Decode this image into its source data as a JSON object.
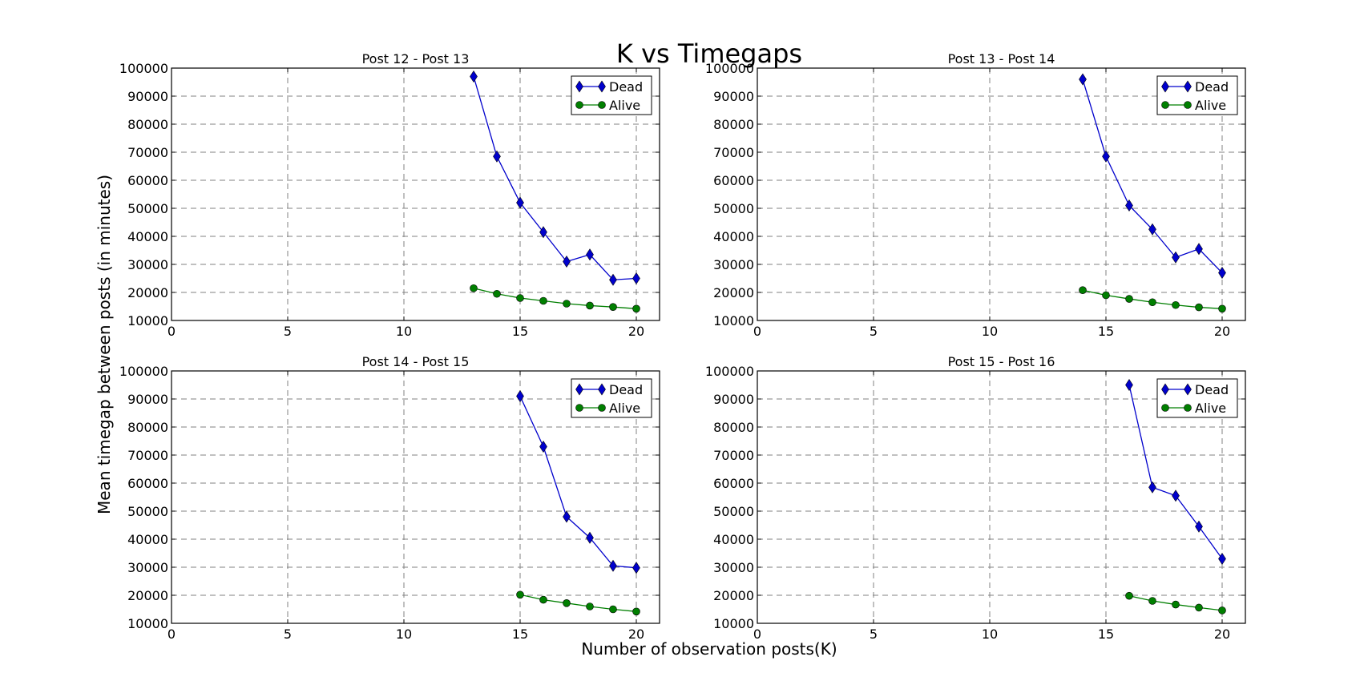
{
  "figure": {
    "title": "K vs Timegaps",
    "xlabel": "Number of observation posts(K)",
    "ylabel": "Mean timegap between posts (in minutes)"
  },
  "colors": {
    "dead": "#0000cc",
    "alive": "#007f00",
    "grid": "#808080",
    "axes": "#000000"
  },
  "chart_data": [
    {
      "type": "line",
      "title": "Post 12 - Post 13",
      "xlim": [
        0,
        21
      ],
      "ylim": [
        10000,
        100000
      ],
      "xticks": [
        "0",
        "5",
        "10",
        "15",
        "20"
      ],
      "yticks": [
        "10000",
        "20000",
        "30000",
        "40000",
        "50000",
        "60000",
        "70000",
        "80000",
        "90000",
        "100000"
      ],
      "grid": true,
      "legend": "top-right",
      "series": [
        {
          "name": "Dead",
          "marker": "diamond",
          "x": [
            13,
            14,
            15,
            16,
            17,
            18,
            19,
            20
          ],
          "y": [
            97000,
            68500,
            52000,
            41500,
            31000,
            33500,
            24500,
            25000
          ]
        },
        {
          "name": "Alive",
          "marker": "circle",
          "x": [
            13,
            14,
            15,
            16,
            17,
            18,
            19,
            20
          ],
          "y": [
            21500,
            19500,
            18000,
            17000,
            16000,
            15300,
            14800,
            14200
          ]
        }
      ]
    },
    {
      "type": "line",
      "title": "Post 13 - Post 14",
      "xlim": [
        0,
        21
      ],
      "ylim": [
        10000,
        100000
      ],
      "xticks": [
        "0",
        "5",
        "10",
        "15",
        "20"
      ],
      "yticks": [
        "10000",
        "20000",
        "30000",
        "40000",
        "50000",
        "60000",
        "70000",
        "80000",
        "90000",
        "100000"
      ],
      "grid": true,
      "legend": "top-right",
      "series": [
        {
          "name": "Dead",
          "marker": "diamond",
          "x": [
            14,
            15,
            16,
            17,
            18,
            19,
            20
          ],
          "y": [
            96000,
            68500,
            51000,
            42500,
            32500,
            35500,
            27000
          ]
        },
        {
          "name": "Alive",
          "marker": "circle",
          "x": [
            14,
            15,
            16,
            17,
            18,
            19,
            20
          ],
          "y": [
            20800,
            19000,
            17700,
            16500,
            15500,
            14700,
            14200
          ]
        }
      ]
    },
    {
      "type": "line",
      "title": "Post 14 - Post 15",
      "xlim": [
        0,
        21
      ],
      "ylim": [
        10000,
        100000
      ],
      "xticks": [
        "0",
        "5",
        "10",
        "15",
        "20"
      ],
      "yticks": [
        "10000",
        "20000",
        "30000",
        "40000",
        "50000",
        "60000",
        "70000",
        "80000",
        "90000",
        "100000"
      ],
      "grid": true,
      "legend": "top-right",
      "series": [
        {
          "name": "Dead",
          "marker": "diamond",
          "x": [
            15,
            16,
            17,
            18,
            19,
            20
          ],
          "y": [
            91000,
            73000,
            48000,
            40500,
            30500,
            29800
          ]
        },
        {
          "name": "Alive",
          "marker": "circle",
          "x": [
            15,
            16,
            17,
            18,
            19,
            20
          ],
          "y": [
            20200,
            18400,
            17200,
            16000,
            15000,
            14200
          ]
        }
      ]
    },
    {
      "type": "line",
      "title": "Post 15 - Post 16",
      "xlim": [
        0,
        21
      ],
      "ylim": [
        10000,
        100000
      ],
      "xticks": [
        "0",
        "5",
        "10",
        "15",
        "20"
      ],
      "yticks": [
        "10000",
        "20000",
        "30000",
        "40000",
        "50000",
        "60000",
        "70000",
        "80000",
        "90000",
        "100000"
      ],
      "grid": true,
      "legend": "top-right",
      "series": [
        {
          "name": "Dead",
          "marker": "diamond",
          "x": [
            16,
            17,
            18,
            19,
            20
          ],
          "y": [
            95000,
            58500,
            55500,
            44500,
            33000
          ]
        },
        {
          "name": "Alive",
          "marker": "circle",
          "x": [
            16,
            17,
            18,
            19,
            20
          ],
          "y": [
            19800,
            18000,
            16700,
            15600,
            14600
          ]
        }
      ]
    }
  ]
}
